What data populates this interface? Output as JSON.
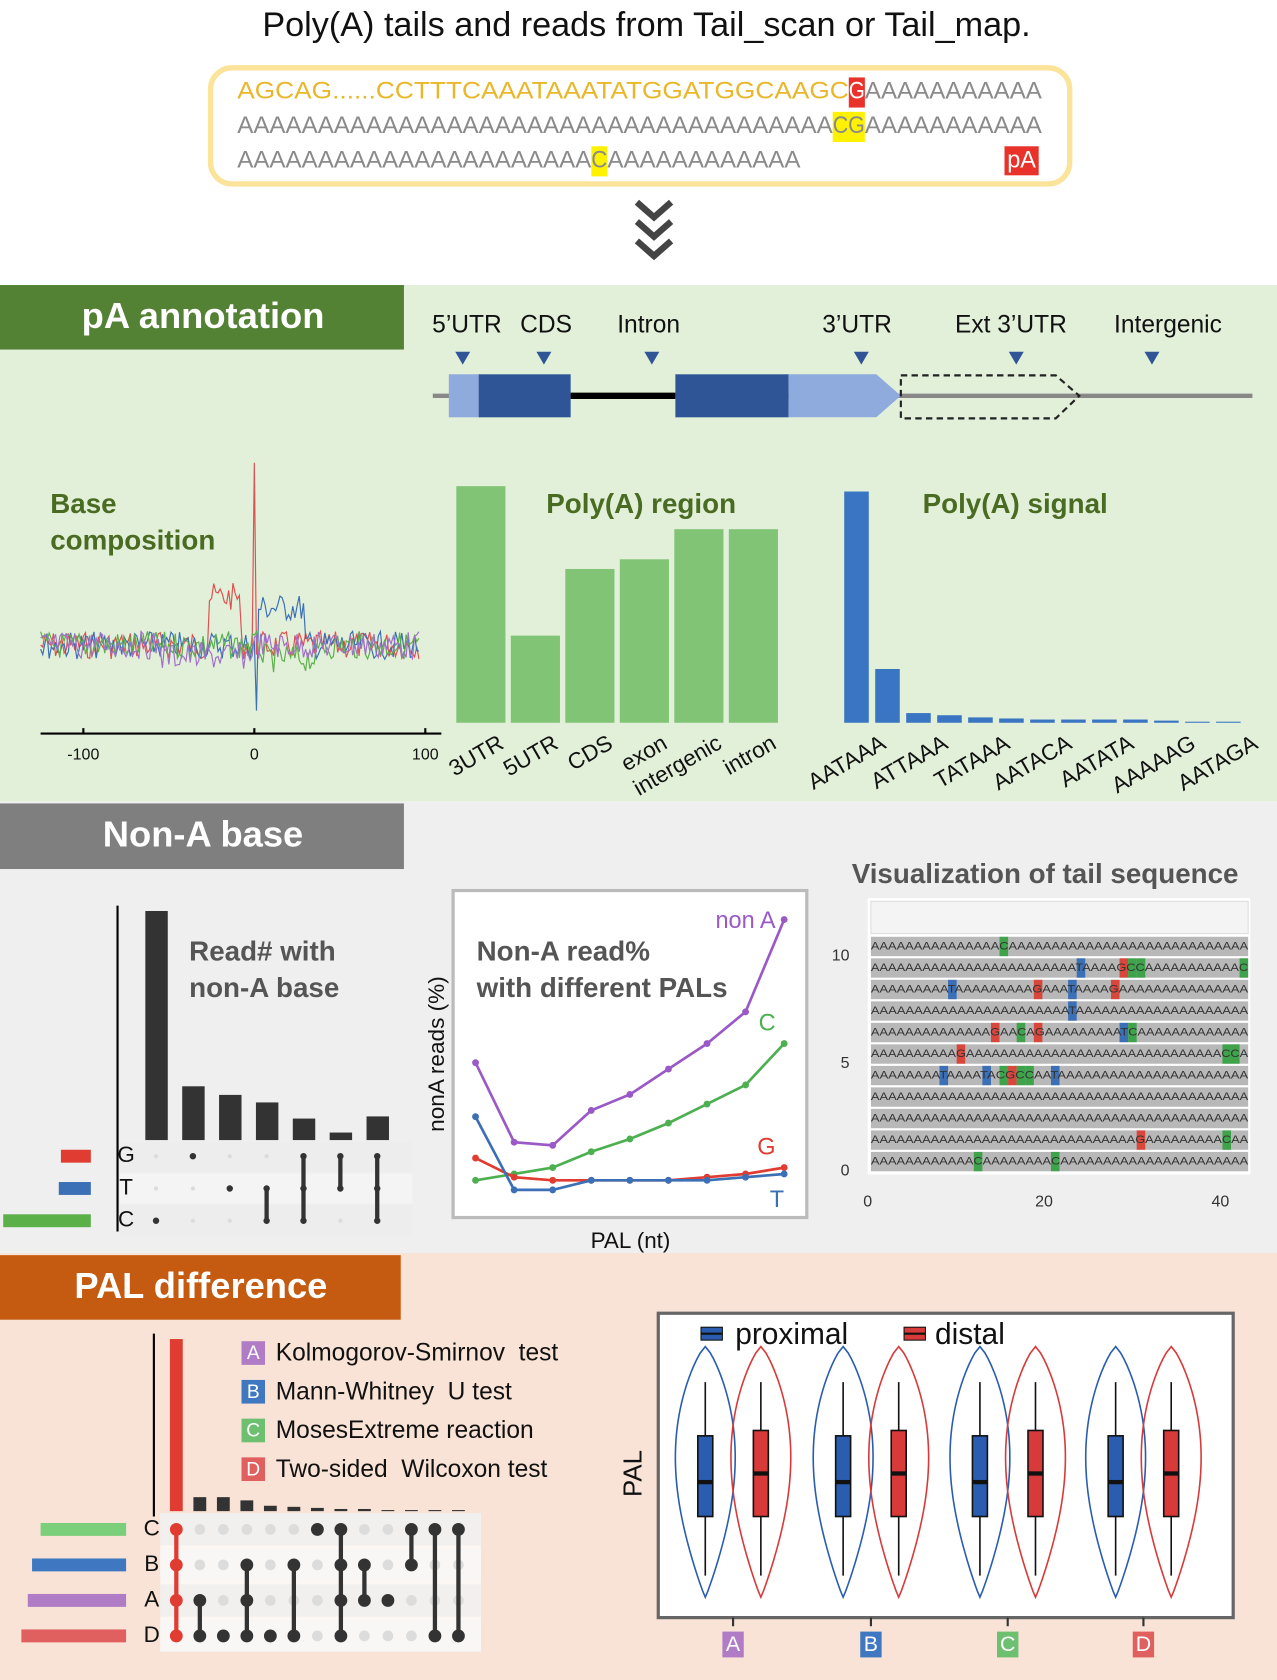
{
  "header": {
    "title": "Poly(A) tails and reads from Tail_scan or Tail_map.",
    "sequence": [
      [
        {
          "text": "AGCAG......CCTTTCAAATAAATATGGATGGCAAGC",
          "style": "gold"
        },
        {
          "text": "G",
          "style": "red"
        },
        {
          "text": "AAAAAAAAAAA",
          "style": "plain"
        }
      ],
      [
        {
          "text": "AAAAAAAAAAAAAAAAAAAAAAAAAAAAAAAAAAAAA",
          "style": "plain"
        },
        {
          "text": "CG",
          "style": "yellow"
        },
        {
          "text": "AAAAAAAAAAA",
          "style": "plain"
        }
      ],
      [
        {
          "text": "AAAAAAAAAAAAAAAAAAAAAA",
          "style": "plain"
        },
        {
          "text": "C",
          "style": "yellow"
        },
        {
          "text": "AAAAAAAAAAAA",
          "style": "plain"
        }
      ]
    ],
    "tail_label": "pA"
  },
  "pa_annotation": {
    "title": "pA annotation",
    "gene_features": [
      "5’UTR",
      "CDS",
      "Intron",
      "3’UTR",
      "Ext 3’UTR",
      "Intergenic"
    ],
    "base_composition": {
      "title": [
        "Base",
        "composition"
      ],
      "xticks": [
        -100,
        0,
        100
      ]
    },
    "poly_a_region": {
      "type": "bar",
      "title": "Poly(A) region",
      "categories": [
        "3UTR",
        "5UTR",
        "CDS",
        "exon",
        "intergenic",
        "intron"
      ],
      "values": [
        220,
        81,
        143,
        152,
        180,
        180
      ],
      "color": "#82c475"
    },
    "poly_a_signal": {
      "type": "bar",
      "title": "Poly(A) signal",
      "categories": [
        "AATAAA",
        null,
        "ATTAAA",
        null,
        "TATAAA",
        null,
        "AATACA",
        null,
        "AATATA",
        null,
        "AAAAAG",
        null,
        "AATAGA"
      ],
      "values": [
        215,
        50,
        9,
        7,
        5,
        4,
        3,
        3,
        3,
        3,
        2,
        1,
        1
      ],
      "color": "#3a75c4"
    }
  },
  "non_a": {
    "title": "Non-A base",
    "read_count": {
      "type": "bar",
      "title": [
        "Read# with",
        "non-A base"
      ],
      "values": [
        213,
        50,
        42,
        35,
        20,
        7,
        22
      ],
      "color": "#333333",
      "sets": [
        {
          "name": "G",
          "color": "#e03c31",
          "size": 28
        },
        {
          "name": "T",
          "color": "#3b6fb6",
          "size": 30
        },
        {
          "name": "C",
          "color": "#5bb04a",
          "size": 82
        }
      ],
      "membership": [
        [
          2
        ],
        [
          0
        ],
        [
          1
        ],
        [
          1,
          2
        ],
        [
          0,
          1,
          2
        ],
        [
          0,
          1
        ],
        [
          0,
          1,
          2
        ]
      ]
    },
    "pal_percent": {
      "type": "line",
      "title": [
        "Non-A read%",
        "with different PALs"
      ],
      "ylabel": "nonA reads (%)",
      "xlabel": "PAL (nt)",
      "series": [
        {
          "name": "non A",
          "color": "#9b59c8",
          "values": [
            47,
            22,
            21,
            32,
            37,
            45,
            53,
            63,
            92
          ]
        },
        {
          "name": "C",
          "color": "#4caf50",
          "values": [
            10,
            12,
            14,
            19,
            23,
            28,
            34,
            40,
            53
          ]
        },
        {
          "name": "G",
          "color": "#e03c31",
          "values": [
            17,
            11,
            10,
            10,
            10,
            10,
            11,
            12,
            14
          ]
        },
        {
          "name": "T",
          "color": "#3b6fb6",
          "values": [
            30,
            7,
            7,
            10,
            10,
            10,
            10,
            11,
            12
          ]
        }
      ]
    },
    "tail_visualization": {
      "title": "Visualization of tail sequence",
      "yticks": [
        10,
        5,
        0
      ],
      "xticks": [
        0,
        20,
        40
      ],
      "rows": [
        "AAAAAAAAAAAAAAACAAAAAAAAAAAAAAAAAAAAAAAAAAAA",
        "AAAAAAAAAAAAAAAAAAAAAAAATAAAAGCCAAAAAAAAAAAC",
        "AAAAAAAAATAAAAAAAAAGAAATAAAAGAAAAAAAAAAAAAAA",
        "AAAAAAAAAAAAAAAAAAAAAAATAAAAAAAAAAAAAAAAAAAA",
        "AAAAAAAAAAAAAAGAACAGAAAAAAAAATCAAAAAAAAAAAAA",
        "AAAAAAAAAAGAAAAAAAAAAAAAAAAAAAAAAAAAAAAAACCA",
        "AAAAAAAATAAAATACGCCAATAAAAAAAAAAAAAAAAAAAAAA",
        "AAAAAAAAAAAAAAAAAAAAAAAAAAAAAAAAAAAAAAAAAAAA",
        "AAAAAAAAAAAAAAAAAAAAAAAAAAAAAAAAAAAAAAAAAAAA",
        "AAAAAAAAAAAAAAAAAAAAAAAAAAAAAAAGAAAAAAAAACAA",
        "AAAAAAAAAAAACAAAAAAAACAAAAAAAAAAAAAAAAAAAAAA"
      ]
    }
  },
  "pal_diff": {
    "title": "PAL difference",
    "tests": [
      {
        "letter": "A",
        "name": "Kolmogorov-Smirnov  test",
        "color": "#b07cc6"
      },
      {
        "letter": "B",
        "name": "Mann-Whitney  U test",
        "color": "#3f78c0"
      },
      {
        "letter": "C",
        "name": "MosesExtreme reaction",
        "color": "#6cc070"
      },
      {
        "letter": "D",
        "name": "Two-sided  Wilcoxon test",
        "color": "#e06060"
      }
    ],
    "upset": {
      "type": "bar",
      "sets": [
        {
          "name": "C",
          "color": "#7ccf7a",
          "size": 80
        },
        {
          "name": "B",
          "color": "#3f78c0",
          "size": 88
        },
        {
          "name": "A",
          "color": "#b07cc6",
          "size": 92
        },
        {
          "name": "D",
          "color": "#e06060",
          "size": 98
        }
      ],
      "values": [
        160,
        13,
        13,
        10,
        5,
        4,
        3,
        2,
        2,
        1,
        1,
        1,
        1
      ],
      "membership": [
        [
          0,
          1,
          2,
          3
        ],
        [
          2,
          3
        ],
        [
          3
        ],
        [
          1,
          2,
          3
        ],
        [
          3
        ],
        [
          1,
          3
        ],
        [
          0
        ],
        [
          0,
          1,
          2,
          3
        ],
        [
          1,
          2
        ],
        [
          2
        ],
        [
          0,
          1
        ],
        [
          0,
          3
        ],
        [
          0,
          3
        ]
      ]
    },
    "violin": {
      "ylabel": "PAL",
      "legend": [
        "proximal",
        "distal"
      ],
      "groups": [
        "A",
        "B",
        "C",
        "D"
      ],
      "colors": [
        "#2a5db0",
        "#d83a3a"
      ]
    }
  }
}
